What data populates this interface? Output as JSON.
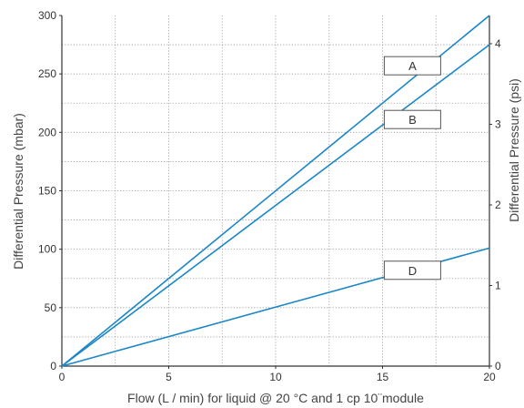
{
  "chart_data": {
    "type": "line",
    "title": "",
    "xlabel": "Flow (L / min) for liquid @ 20 °C and 1 cp 10¨module",
    "ylabel": "Differential Pressure (mbar)",
    "ylabel_right": "Differential Pressure (psi)",
    "xlim": [
      0,
      20
    ],
    "ylim": [
      0,
      300
    ],
    "ylim_right": [
      0,
      4.35
    ],
    "x_ticks": [
      "0",
      "5",
      "10",
      "15",
      "20"
    ],
    "y_ticks": [
      "0",
      "50",
      "100",
      "150",
      "200",
      "250",
      "300"
    ],
    "y_ticks_right": [
      "0",
      "1",
      "2",
      "3",
      "4"
    ],
    "grid": true,
    "line_color": "#1a86c7",
    "series": [
      {
        "name": "A",
        "x": [
          0,
          20
        ],
        "y": [
          0,
          300
        ],
        "label_x": 16.4,
        "label_y": 257
      },
      {
        "name": "B",
        "x": [
          0,
          20
        ],
        "y": [
          0,
          275
        ],
        "label_x": 16.4,
        "label_y": 211
      },
      {
        "name": "D",
        "x": [
          0,
          20
        ],
        "y": [
          0,
          101
        ],
        "label_x": 16.4,
        "label_y": 82
      }
    ]
  }
}
